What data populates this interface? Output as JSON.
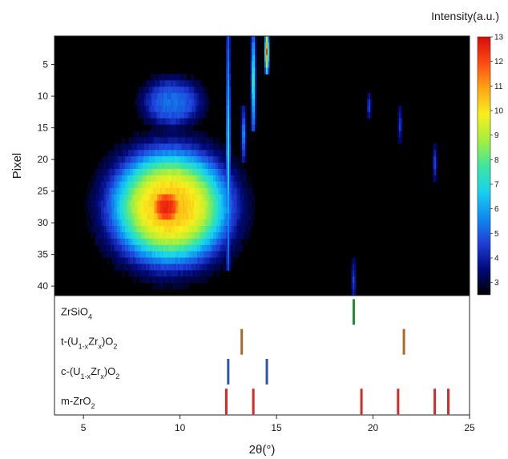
{
  "chart_data": [
    {
      "type": "heatmap",
      "xlabel": "2θ(°)",
      "ylabel": "Pixel",
      "xlim": [
        3.5,
        25
      ],
      "ylim": [
        41,
        0
      ],
      "x_ticks": [
        5,
        10,
        15,
        20,
        25
      ],
      "y_ticks": [
        5,
        10,
        15,
        20,
        25,
        30,
        35,
        40
      ],
      "colorbar": {
        "title": "Intensity(a.u.)",
        "min": 2.5,
        "max": 13,
        "ticks": [
          3,
          4,
          5,
          6,
          7,
          8,
          9,
          10,
          11,
          12,
          13
        ],
        "colormap": [
          "#000000",
          "#000a7a",
          "#1f3fd8",
          "#0f8cf0",
          "#17d2ee",
          "#3ee6a0",
          "#a6ef3c",
          "#f8ef1c",
          "#ffa514",
          "#ff4a12",
          "#d80b0b"
        ]
      },
      "background_value": 2.6,
      "features": [
        {
          "kind": "blob",
          "x": 9.6,
          "y": 10.5,
          "sx": 1.2,
          "sy": 3.0,
          "peak": 5.2
        },
        {
          "kind": "blob",
          "x": 9.5,
          "y": 27,
          "sx": 2.4,
          "sy": 7.0,
          "peak": 10.5
        },
        {
          "kind": "blob",
          "x": 9.3,
          "y": 27,
          "sx": 0.85,
          "sy": 3.0,
          "peak": 12.5
        },
        {
          "kind": "streak",
          "x": 12.5,
          "y_from": 0,
          "y_to": 36,
          "peak": 7.5
        },
        {
          "kind": "streak",
          "x": 13.3,
          "y_from": 12,
          "y_to": 19,
          "peak": 6.5
        },
        {
          "kind": "streak",
          "x": 13.8,
          "y_from": 0,
          "y_to": 14,
          "peak": 9.0
        },
        {
          "kind": "streak",
          "x": 14.5,
          "y_from": 0,
          "y_to": 5,
          "peak": 12.5
        },
        {
          "kind": "streak",
          "x": 19.0,
          "y_from": 36,
          "y_to": 41,
          "peak": 5.0
        },
        {
          "kind": "streak",
          "x": 19.8,
          "y_from": 10,
          "y_to": 12,
          "peak": 5.2
        },
        {
          "kind": "streak",
          "x": 21.4,
          "y_from": 12,
          "y_to": 16,
          "peak": 4.8
        },
        {
          "kind": "streak",
          "x": 23.2,
          "y_from": 18,
          "y_to": 22,
          "peak": 5.0
        }
      ]
    },
    {
      "type": "reference_lines",
      "xlabel": "2θ(°)",
      "xlim": [
        3.5,
        25
      ],
      "x_ticks": [
        5,
        10,
        15,
        20,
        25
      ],
      "phases": [
        {
          "name_parts": [
            [
              "ZrSiO",
              "n"
            ],
            [
              "4",
              "sub"
            ]
          ],
          "color": "#1e8c2e",
          "positions": [
            19.0
          ]
        },
        {
          "name_parts": [
            [
              "t-(U",
              "n"
            ],
            [
              "1-x",
              "sub"
            ],
            [
              "Zr",
              "n"
            ],
            [
              "x",
              "sub"
            ],
            [
              ")O",
              "n"
            ],
            [
              "2",
              "sub"
            ]
          ],
          "color": "#a86a28",
          "positions": [
            13.2,
            21.6
          ]
        },
        {
          "name_parts": [
            [
              "c-(U",
              "n"
            ],
            [
              "1-x",
              "sub"
            ],
            [
              "Zr",
              "n"
            ],
            [
              "x",
              "sub"
            ],
            [
              ")O",
              "n"
            ],
            [
              "2",
              "sub"
            ]
          ],
          "color": "#3050b0",
          "positions": [
            12.5,
            14.5
          ]
        },
        {
          "name_parts": [
            [
              "m-ZrO",
              "n"
            ],
            [
              "2",
              "sub"
            ]
          ],
          "color": "#d02a2a",
          "positions": [
            12.4,
            13.8,
            19.4,
            21.3,
            23.2,
            23.9
          ]
        }
      ]
    }
  ]
}
